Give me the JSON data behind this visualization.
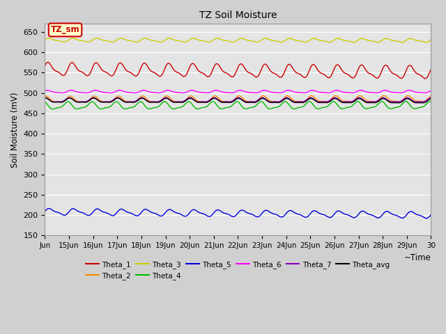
{
  "title": "TZ Soil Moisture",
  "xlabel": "~Time",
  "ylabel": "Soil Moisture (mV)",
  "ylim": [
    150,
    670
  ],
  "yticks": [
    150,
    200,
    250,
    300,
    350,
    400,
    450,
    500,
    550,
    600,
    650
  ],
  "bg_color": "#d0d0d0",
  "plot_bg_color": "#e4e4e4",
  "annotation_text": "TZ_sm",
  "annotation_bg": "#ffffcc",
  "annotation_border": "#cc0000",
  "series": {
    "Theta_1": {
      "color": "#cc0000",
      "base": 558,
      "amp": 14,
      "freq": 1.0,
      "phase": 0.5,
      "trend": -0.5
    },
    "Theta_2": {
      "color": "#ff8800",
      "base": 483,
      "amp": 7,
      "freq": 1.0,
      "phase": 1.2,
      "trend": 0.1
    },
    "Theta_3": {
      "color": "#cccc00",
      "base": 630,
      "amp": 4,
      "freq": 1.0,
      "phase": 0.3,
      "trend": -0.05
    },
    "Theta_4": {
      "color": "#00bb00",
      "base": 468,
      "amp": 8,
      "freq": 1.0,
      "phase": 2.0,
      "trend": 0.05
    },
    "Theta_5": {
      "color": "#0000dd",
      "base": 208,
      "amp": 7,
      "freq": 1.0,
      "phase": 0.1,
      "trend": -0.5
    },
    "Theta_6": {
      "color": "#ff00ff",
      "base": 503,
      "amp": 3,
      "freq": 1.0,
      "phase": 0.8,
      "trend": 0.0
    },
    "Theta_7": {
      "color": "#8800bb",
      "base": 482,
      "amp": 5,
      "freq": 1.0,
      "phase": 1.5,
      "trend": 0.0
    },
    "Theta_avg": {
      "color": "#000000",
      "base": 481,
      "amp": 5,
      "freq": 1.0,
      "phase": 1.4,
      "trend": -0.1
    }
  },
  "xtick_labels": [
    "Jun",
    "15Jun",
    "16Jun",
    "17Jun",
    "18Jun",
    "19Jun",
    "20Jun",
    "21Jun",
    "22Jun",
    "23Jun",
    "24Jun",
    "25Jun",
    "26Jun",
    "27Jun",
    "28Jun",
    "29Jun",
    "30"
  ],
  "n_points": 480,
  "figsize": [
    6.4,
    4.8
  ],
  "dpi": 100
}
